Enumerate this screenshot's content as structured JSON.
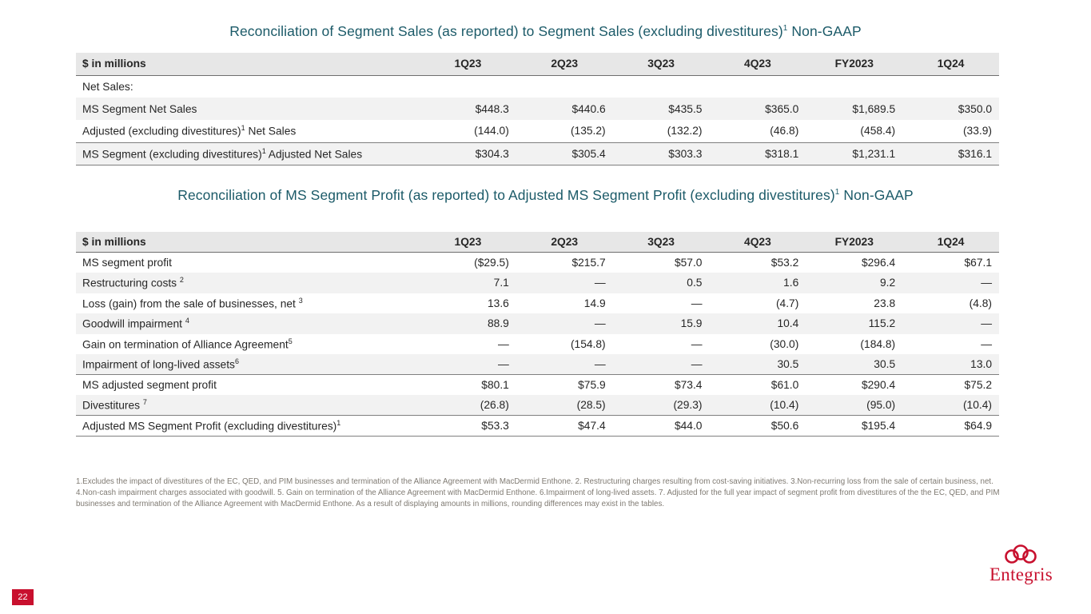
{
  "colors": {
    "title_color": "#1B5A68",
    "brand_red": "#C8102E",
    "header_bg": "#E7E7E7",
    "stripe_bg": "#F2F2F2",
    "text_color": "#262626",
    "footnote_color": "#7F7A72"
  },
  "tables": {
    "sales": {
      "title": "Reconciliation of Segment Sales (as reported) to Segment Sales (excluding divestitures)",
      "title_sup": "1",
      "title_suffix": " Non-GAAP",
      "headers": [
        "$ in millions",
        "1Q23",
        "2Q23",
        "3Q23",
        "4Q23",
        "FY2023",
        "1Q24"
      ],
      "rows": [
        {
          "label": "Net Sales:",
          "values": [
            "",
            "",
            "",
            "",
            "",
            ""
          ]
        },
        {
          "label": "MS Segment Net Sales",
          "values": [
            "$448.3",
            "$440.6",
            "$435.5",
            "$365.0",
            "$1,689.5",
            "$350.0"
          ]
        },
        {
          "label": "Adjusted (excluding divestitures)",
          "sup": "1",
          "after": "  Net Sales",
          "values": [
            "(144.0)",
            "(135.2)",
            "(132.2)",
            "(46.8)",
            "(458.4)",
            "(33.9)"
          ]
        },
        {
          "label": "MS Segment (excluding divestitures)",
          "sup": "1",
          "after": " Adjusted Net Sales",
          "line_above": true,
          "values": [
            "$304.3",
            "$305.4",
            "$303.3",
            "$318.1",
            "$1,231.1",
            "$316.1"
          ]
        }
      ]
    },
    "profit": {
      "title": "Reconciliation of MS Segment Profit (as reported) to Adjusted MS Segment Profit (excluding divestitures)",
      "title_sup": "1",
      "title_suffix": " Non-GAAP",
      "headers": [
        "$ in millions",
        "1Q23",
        "2Q23",
        "3Q23",
        "4Q23",
        "FY2023",
        "1Q24"
      ],
      "rows": [
        {
          "label": "MS segment profit",
          "values": [
            "($29.5)",
            "$215.7",
            "$57.0",
            "$53.2",
            "$296.4",
            "$67.1"
          ]
        },
        {
          "label": "Restructuring costs ",
          "sup": "2",
          "values": [
            "7.1",
            "—",
            "0.5",
            "1.6",
            "9.2",
            "—"
          ]
        },
        {
          "label": "Loss (gain) from the sale of businesses, net ",
          "sup": "3",
          "values": [
            "13.6",
            "14.9",
            "—",
            "(4.7)",
            "23.8",
            "(4.8)"
          ]
        },
        {
          "label": "Goodwill impairment ",
          "sup": "4",
          "values": [
            "88.9",
            "—",
            "15.9",
            "10.4",
            "115.2",
            "—"
          ]
        },
        {
          "label": "Gain on termination of Alliance Agreement",
          "sup": "5",
          "values": [
            "—",
            "(154.8)",
            "—",
            "(30.0)",
            "(184.8)",
            "—"
          ]
        },
        {
          "label": "Impairment of long-lived assets",
          "sup": "6",
          "values": [
            "—",
            "—",
            "—",
            "30.5",
            "30.5",
            "13.0"
          ]
        },
        {
          "label": "MS adjusted segment profit",
          "line_above": true,
          "values": [
            "$80.1",
            "$75.9",
            "$73.4",
            "$61.0",
            "$290.4",
            "$75.2"
          ]
        },
        {
          "label": "Divestitures ",
          "sup": "7",
          "values": [
            "(26.8)",
            "(28.5)",
            "(29.3)",
            "(10.4)",
            "(95.0)",
            "(10.4)"
          ]
        },
        {
          "label": "Adjusted MS Segment Profit (excluding divestitures)",
          "sup": "1",
          "line_above": true,
          "values": [
            "$53.3",
            "$47.4",
            "$44.0",
            "$50.6",
            "$195.4",
            "$64.9"
          ]
        }
      ]
    }
  },
  "footnote": "1.Excludes the impact of divestitures of the EC, QED, and PIM businesses and termination of the Alliance Agreement with MacDermid Enthone.  2. Restructuring charges resulting from cost-saving initiatives.  3.Non-recurring loss from the sale of certain business, net.  4.Non-cash impairment charges associated with goodwill.  5. Gain on termination of the Alliance Agreement with MacDermid Enthone.  6.Impairment of long-lived assets. 7. Adjusted for the full year impact of segment profit from divestitures of the the EC, QED, and PIM businesses and termination of the Alliance Agreement with MacDermid Enthone.  As a result of displaying amounts in millions, rounding differences may exist in the tables.",
  "logo": {
    "text": "Entegris"
  },
  "page_number": "22"
}
